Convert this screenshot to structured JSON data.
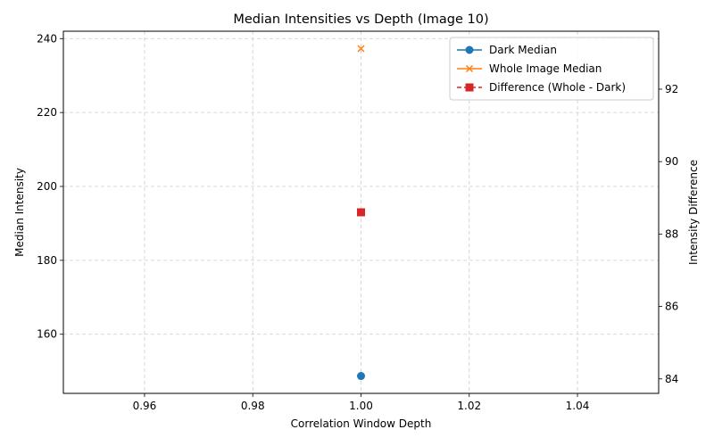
{
  "chart_data": {
    "type": "scatter",
    "title": "Median Intensities vs Depth (Image 10)",
    "xlabel": "Correlation Window Depth",
    "ylabel": "Median Intensity",
    "ylabel_right": "Intensity Difference",
    "xlim": [
      0.945,
      1.055
    ],
    "ylim": [
      144,
      242
    ],
    "ylim_right": [
      83.6,
      93.6
    ],
    "x_ticks": [
      0.96,
      0.98,
      1.0,
      1.02,
      1.04
    ],
    "x_tick_labels": [
      "0.96",
      "0.98",
      "1.00",
      "1.02",
      "1.04"
    ],
    "y_ticks": [
      160,
      180,
      200,
      220,
      240
    ],
    "y_tick_labels": [
      "160",
      "180",
      "200",
      "220",
      "240"
    ],
    "y_ticks_right": [
      84,
      86,
      88,
      90,
      92
    ],
    "y_tick_labels_right": [
      "84",
      "86",
      "88",
      "90",
      "92"
    ],
    "grid": true,
    "legend_position": "top-right",
    "series": [
      {
        "name": "Dark Median",
        "axis": "left",
        "marker": "circle",
        "linestyle": "solid",
        "color": "#1f77b4",
        "x": [
          1.0
        ],
        "y": [
          148.7
        ]
      },
      {
        "name": "Whole Image Median",
        "axis": "left",
        "marker": "x",
        "linestyle": "solid",
        "color": "#ff7f0e",
        "x": [
          1.0
        ],
        "y": [
          237.3
        ]
      },
      {
        "name": "Difference (Whole - Dark)",
        "axis": "right",
        "marker": "square",
        "linestyle": "dashed",
        "color": "#d62728",
        "x": [
          1.0
        ],
        "y": [
          88.6
        ]
      }
    ]
  }
}
